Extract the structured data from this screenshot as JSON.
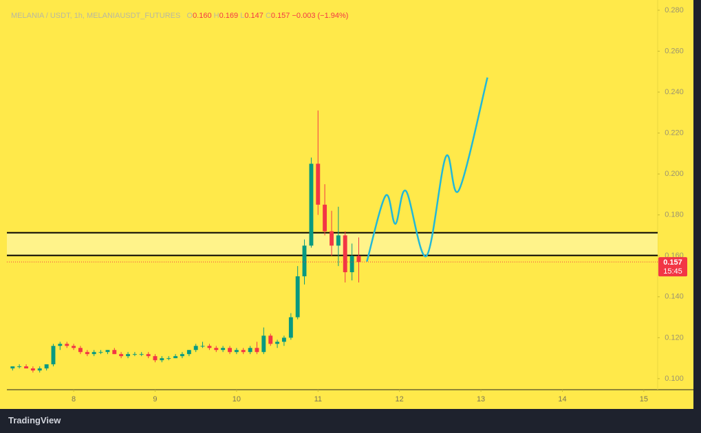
{
  "chart_data": {
    "type": "candlestick",
    "header": {
      "symbol": "MELANIA / USDT, 1h, MELANIAUSDT_FUTURES",
      "o_label": "O",
      "o": "0.160",
      "h_label": "H",
      "h": "0.169",
      "l_label": "L",
      "l": "0.147",
      "c_label": "C",
      "c": "0.157",
      "change": "−0.003 (−1.94%)"
    },
    "candles": {
      "x": [
        7.25,
        7.333,
        7.417,
        7.5,
        7.583,
        7.667,
        7.75,
        7.833,
        7.917,
        8.0,
        8.083,
        8.167,
        8.25,
        8.333,
        8.417,
        8.5,
        8.583,
        8.667,
        8.75,
        8.833,
        8.917,
        9.0,
        9.083,
        9.167,
        9.25,
        9.333,
        9.417,
        9.5,
        9.583,
        9.667,
        9.75,
        9.833,
        9.917,
        10.0,
        10.083,
        10.167,
        10.25,
        10.333,
        10.417,
        10.5,
        10.583,
        10.667,
        10.75,
        10.833,
        10.917,
        11.0,
        11.083,
        11.167,
        11.25,
        11.333,
        11.417,
        11.5
      ],
      "open": [
        0.105,
        0.106,
        0.106,
        0.105,
        0.104,
        0.105,
        0.107,
        0.116,
        0.117,
        0.116,
        0.115,
        0.113,
        0.112,
        0.113,
        0.113,
        0.114,
        0.112,
        0.111,
        0.112,
        0.112,
        0.112,
        0.111,
        0.109,
        0.11,
        0.11,
        0.111,
        0.112,
        0.114,
        0.116,
        0.116,
        0.115,
        0.114,
        0.115,
        0.113,
        0.114,
        0.113,
        0.115,
        0.113,
        0.121,
        0.117,
        0.118,
        0.12,
        0.13,
        0.15,
        0.165,
        0.205,
        0.185,
        0.172,
        0.165,
        0.17,
        0.152,
        0.16
      ],
      "high": [
        0.106,
        0.107,
        0.107,
        0.106,
        0.106,
        0.107,
        0.117,
        0.118,
        0.118,
        0.117,
        0.116,
        0.114,
        0.114,
        0.114,
        0.114,
        0.115,
        0.113,
        0.113,
        0.113,
        0.113,
        0.113,
        0.112,
        0.111,
        0.111,
        0.112,
        0.113,
        0.114,
        0.117,
        0.118,
        0.117,
        0.116,
        0.116,
        0.116,
        0.115,
        0.115,
        0.116,
        0.118,
        0.125,
        0.122,
        0.119,
        0.121,
        0.132,
        0.155,
        0.168,
        0.208,
        0.231,
        0.195,
        0.182,
        0.184,
        0.172,
        0.166,
        0.169
      ],
      "low": [
        0.104,
        0.105,
        0.105,
        0.103,
        0.103,
        0.104,
        0.106,
        0.114,
        0.115,
        0.114,
        0.112,
        0.111,
        0.111,
        0.112,
        0.112,
        0.112,
        0.11,
        0.11,
        0.111,
        0.111,
        0.11,
        0.108,
        0.108,
        0.109,
        0.11,
        0.11,
        0.111,
        0.113,
        0.115,
        0.114,
        0.113,
        0.113,
        0.112,
        0.112,
        0.112,
        0.112,
        0.112,
        0.112,
        0.116,
        0.115,
        0.116,
        0.119,
        0.129,
        0.146,
        0.164,
        0.18,
        0.17,
        0.16,
        0.155,
        0.147,
        0.148,
        0.147
      ],
      "close": [
        0.106,
        0.106,
        0.105,
        0.104,
        0.105,
        0.107,
        0.116,
        0.117,
        0.116,
        0.115,
        0.113,
        0.112,
        0.113,
        0.113,
        0.114,
        0.112,
        0.111,
        0.112,
        0.112,
        0.112,
        0.111,
        0.109,
        0.11,
        0.11,
        0.111,
        0.112,
        0.114,
        0.116,
        0.116,
        0.115,
        0.114,
        0.115,
        0.113,
        0.114,
        0.113,
        0.115,
        0.113,
        0.121,
        0.117,
        0.118,
        0.12,
        0.13,
        0.15,
        0.165,
        0.205,
        0.185,
        0.172,
        0.165,
        0.17,
        0.152,
        0.16,
        0.157
      ],
      "up_color": "#089981",
      "down_color": "#f23645"
    },
    "levels": [
      0.1713,
      0.1602
    ],
    "projection": {
      "color": "#22b8d8",
      "x": [
        11.6,
        11.83,
        11.95,
        12.08,
        12.33,
        12.57,
        12.73,
        13.08
      ],
      "values": [
        0.1572,
        0.1894,
        0.1756,
        0.1917,
        0.1599,
        0.2085,
        0.1921,
        0.2471
      ]
    },
    "last_price": 0.157,
    "countdown": "15:45",
    "xlim": [
      7.18,
      15.17
    ],
    "xticks": [
      8,
      9,
      10,
      11,
      12,
      13,
      14,
      15
    ],
    "ylim": [
      0.0946,
      0.285
    ],
    "yticks": [
      {
        "value": 0.1,
        "label": "0.100"
      },
      {
        "value": 0.12,
        "label": "0.120"
      },
      {
        "value": 0.14,
        "label": "0.140"
      },
      {
        "value": 0.16,
        "label": "0.160"
      },
      {
        "value": 0.18,
        "label": "0.180"
      },
      {
        "value": 0.2,
        "label": "0.200"
      },
      {
        "value": 0.22,
        "label": "0.220"
      },
      {
        "value": 0.24,
        "label": "0.240"
      },
      {
        "value": 0.26,
        "label": "0.260"
      },
      {
        "value": 0.28,
        "label": "0.280"
      }
    ],
    "brand": "TradingView"
  }
}
